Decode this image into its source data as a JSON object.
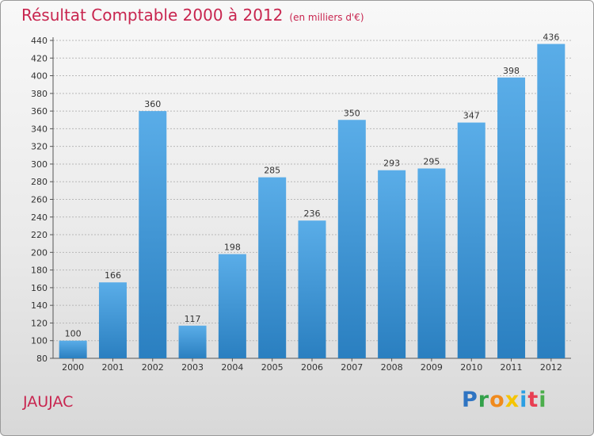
{
  "header": {
    "title": "Résultat Comptable 2000 à 2012",
    "subtitle": "(en milliers d'€)"
  },
  "footer": {
    "commune": "JAUJAC",
    "logo_letters": [
      "P",
      "r",
      "o",
      "x",
      "i",
      "t",
      "i"
    ]
  },
  "colors": {
    "bar_light": "#5aade8",
    "bar_dark": "#2a7fc0",
    "title": "#c8254f",
    "grid": "#b8b8b8"
  },
  "chart_data": {
    "type": "bar",
    "title": "Résultat Comptable 2000 à 2012",
    "subtitle": "(en milliers d'€)",
    "xlabel": "",
    "ylabel": "",
    "categories": [
      "2000",
      "2001",
      "2002",
      "2003",
      "2004",
      "2005",
      "2006",
      "2007",
      "2008",
      "2009",
      "2010",
      "2011",
      "2012"
    ],
    "values": [
      100,
      166,
      360,
      117,
      198,
      285,
      236,
      350,
      293,
      295,
      347,
      398,
      436
    ],
    "ylim": [
      80,
      440
    ],
    "ytick_step": 20,
    "grid": true
  }
}
